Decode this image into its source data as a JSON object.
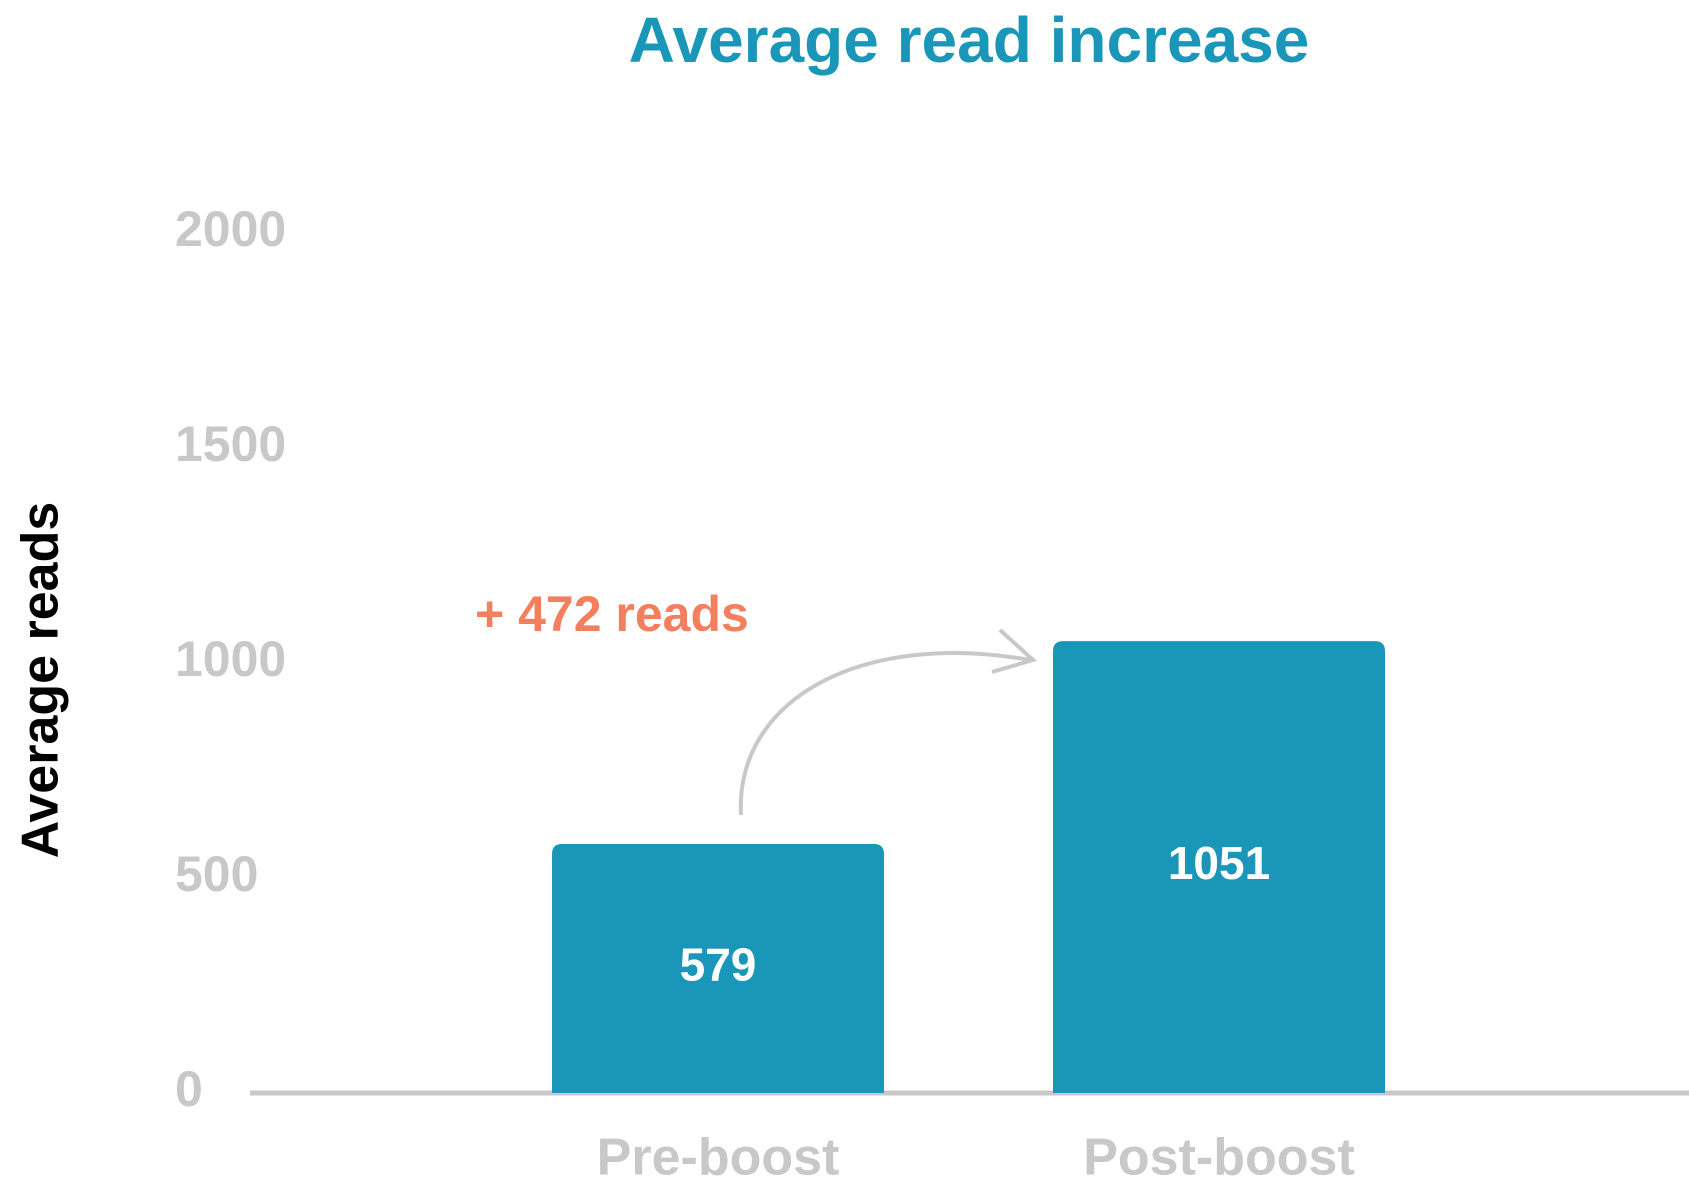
{
  "chart_data": {
    "type": "bar",
    "title": "Average read increase",
    "y_label": "Average reads",
    "categories": [
      "Pre-boost",
      "Post-boost"
    ],
    "values": [
      579,
      1051
    ],
    "color": "#1a96b8",
    "ylim": [
      0,
      2000
    ],
    "yticks": [
      0,
      500,
      1000,
      1500,
      2000
    ],
    "annotation": "+ 472 reads",
    "annotation_color": "#f47f5e",
    "title_color": "#1a96b8",
    "tick_color": "#c8c8c8"
  }
}
